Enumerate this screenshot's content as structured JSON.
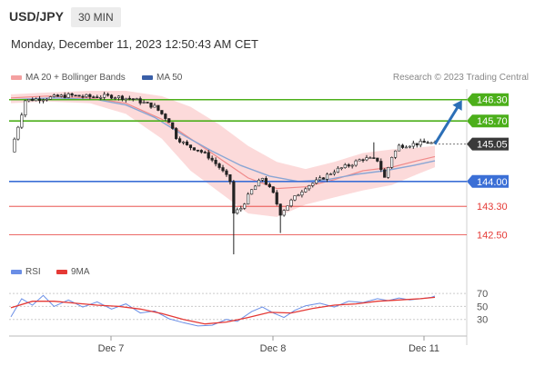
{
  "header": {
    "symbol": "USD/JPY",
    "timeframe": "30 MIN",
    "datetime": "Monday, December 11, 2023 12:50:43 AM CET",
    "source": "Research © 2023 Trading Central"
  },
  "legend": {
    "ma20_label": "MA 20 + Bollinger Bands",
    "ma50_label": "MA 50",
    "ma20_color": "#f4a0a0",
    "ma50_color": "#3a5fa8"
  },
  "rsi_legend": {
    "rsi_label": "RSI",
    "ma9_label": "9MA",
    "rsi_color": "#6a8ee6",
    "ma9_color": "#e53935"
  },
  "colors": {
    "resistance": "#4caf1a",
    "pivot": "#3b6fd6",
    "support": "#e53935",
    "last_price_tag": "#3a3a3a",
    "arrow": "#2c6fb7"
  },
  "chart_data": [
    {
      "type": "candlestick",
      "x_tick_labels": [
        "Dec 7",
        "Dec 8",
        "Dec 11"
      ],
      "ylim": [
        141.9,
        146.6
      ],
      "last_price": 145.05,
      "last_price_label": "145.05",
      "levels": [
        {
          "label": "146.30",
          "value": 146.3,
          "kind": "resistance"
        },
        {
          "label": "145.70",
          "value": 145.7,
          "kind": "resistance"
        },
        {
          "label": "144.00",
          "value": 144.0,
          "kind": "pivot"
        },
        {
          "label": "143.30",
          "value": 143.3,
          "kind": "support"
        },
        {
          "label": "142.50",
          "value": 142.5,
          "kind": "support"
        }
      ],
      "close_path": [
        [
          0,
          144.83
        ],
        [
          4,
          146.28
        ],
        [
          10,
          146.35
        ],
        [
          16,
          146.42
        ],
        [
          22,
          146.38
        ],
        [
          28,
          146.4
        ],
        [
          34,
          146.32
        ],
        [
          40,
          146.1
        ],
        [
          44,
          145.7
        ],
        [
          46,
          145.25
        ],
        [
          49,
          145.0
        ],
        [
          52,
          144.9
        ],
        [
          55,
          144.7
        ],
        [
          58,
          144.4
        ],
        [
          61,
          144.0
        ],
        [
          62,
          143.1
        ],
        [
          64,
          143.25
        ],
        [
          67,
          143.75
        ],
        [
          70,
          144.1
        ],
        [
          73,
          143.65
        ],
        [
          75,
          143.1
        ],
        [
          78,
          143.45
        ],
        [
          82,
          143.85
        ],
        [
          86,
          144.05
        ],
        [
          90,
          144.3
        ],
        [
          94,
          144.45
        ],
        [
          98,
          144.65
        ],
        [
          102,
          144.6
        ],
        [
          104,
          144.1
        ],
        [
          106,
          144.7
        ],
        [
          108,
          145.0
        ],
        [
          112,
          145.05
        ],
        [
          116,
          145.1
        ],
        [
          118,
          145.05
        ]
      ],
      "ma20": [
        [
          0,
          146.35
        ],
        [
          10,
          146.4
        ],
        [
          22,
          146.35
        ],
        [
          32,
          146.2
        ],
        [
          42,
          145.75
        ],
        [
          50,
          145.2
        ],
        [
          58,
          144.65
        ],
        [
          66,
          144.1
        ],
        [
          74,
          143.8
        ],
        [
          82,
          143.85
        ],
        [
          90,
          144.05
        ],
        [
          98,
          144.3
        ],
        [
          106,
          144.4
        ],
        [
          113,
          144.58
        ],
        [
          118,
          144.7
        ]
      ],
      "ma50": [
        [
          0,
          146.3
        ],
        [
          12,
          146.35
        ],
        [
          24,
          146.3
        ],
        [
          32,
          146.15
        ],
        [
          40,
          145.8
        ],
        [
          48,
          145.3
        ],
        [
          56,
          144.85
        ],
        [
          64,
          144.45
        ],
        [
          72,
          144.15
        ],
        [
          80,
          144.0
        ],
        [
          88,
          144.05
        ],
        [
          96,
          144.2
        ],
        [
          104,
          144.3
        ],
        [
          112,
          144.45
        ],
        [
          118,
          144.58
        ]
      ],
      "bb_upper": [
        [
          0,
          146.45
        ],
        [
          10,
          146.5
        ],
        [
          22,
          146.55
        ],
        [
          32,
          146.55
        ],
        [
          42,
          146.4
        ],
        [
          50,
          146.1
        ],
        [
          58,
          145.6
        ],
        [
          66,
          145.0
        ],
        [
          74,
          144.55
        ],
        [
          82,
          144.35
        ],
        [
          90,
          144.55
        ],
        [
          98,
          144.8
        ],
        [
          106,
          144.9
        ],
        [
          113,
          144.95
        ],
        [
          118,
          145.0
        ]
      ],
      "bb_lower": [
        [
          0,
          146.2
        ],
        [
          10,
          146.25
        ],
        [
          22,
          146.2
        ],
        [
          32,
          145.9
        ],
        [
          42,
          145.2
        ],
        [
          50,
          144.3
        ],
        [
          58,
          143.7
        ],
        [
          66,
          143.1
        ],
        [
          74,
          143.0
        ],
        [
          82,
          143.35
        ],
        [
          90,
          143.55
        ],
        [
          98,
          143.75
        ],
        [
          106,
          143.9
        ],
        [
          113,
          144.2
        ],
        [
          118,
          144.4
        ]
      ],
      "arrow": {
        "from": [
          118,
          145.05
        ],
        "to": [
          125,
          146.2
        ]
      }
    },
    {
      "type": "line",
      "title": "RSI",
      "y_tick_labels": [
        "70",
        "50",
        "30"
      ],
      "ylim": [
        10,
        80
      ],
      "series": [
        {
          "name": "RSI",
          "values": [
            [
              0,
              34
            ],
            [
              3,
              62
            ],
            [
              6,
              52
            ],
            [
              9,
              67
            ],
            [
              12,
              50
            ],
            [
              16,
              60
            ],
            [
              20,
              49
            ],
            [
              24,
              57
            ],
            [
              28,
              46
            ],
            [
              32,
              54
            ],
            [
              36,
              40
            ],
            [
              40,
              43
            ],
            [
              44,
              31
            ],
            [
              48,
              25
            ],
            [
              52,
              20
            ],
            [
              56,
              21
            ],
            [
              60,
              30
            ],
            [
              63,
              27
            ],
            [
              67,
              42
            ],
            [
              70,
              49
            ],
            [
              73,
              40
            ],
            [
              76,
              33
            ],
            [
              79,
              44
            ],
            [
              82,
              51
            ],
            [
              86,
              55
            ],
            [
              90,
              49
            ],
            [
              94,
              58
            ],
            [
              98,
              56
            ],
            [
              102,
              62
            ],
            [
              105,
              59
            ],
            [
              108,
              63
            ],
            [
              111,
              60
            ],
            [
              114,
              62
            ],
            [
              117,
              64
            ],
            [
              118,
              66
            ]
          ]
        },
        {
          "name": "9MA",
          "values": [
            [
              0,
              48
            ],
            [
              6,
              58
            ],
            [
              12,
              58
            ],
            [
              18,
              55
            ],
            [
              24,
              52
            ],
            [
              30,
              50
            ],
            [
              36,
              46
            ],
            [
              42,
              39
            ],
            [
              48,
              30
            ],
            [
              54,
              23
            ],
            [
              60,
              26
            ],
            [
              66,
              33
            ],
            [
              72,
              41
            ],
            [
              78,
              40
            ],
            [
              84,
              47
            ],
            [
              90,
              52
            ],
            [
              96,
              54
            ],
            [
              102,
              58
            ],
            [
              108,
              60
            ],
            [
              114,
              62
            ],
            [
              118,
              64
            ]
          ]
        }
      ]
    }
  ]
}
